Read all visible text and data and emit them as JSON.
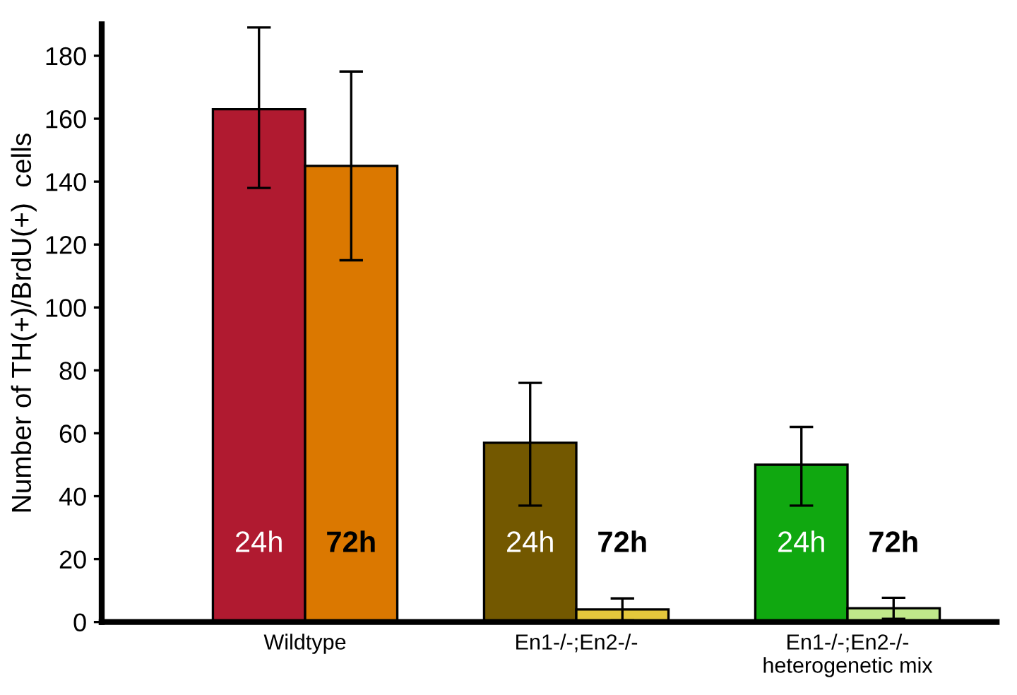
{
  "chart_data": {
    "type": "bar",
    "ylabel": "Number of TH(+)/BrdU(+)  cells",
    "categories": [
      "Wildtype",
      "En1-/-;En2-/-",
      "En1-/-;En2-/-\nheterogenetic mix"
    ],
    "series": [
      {
        "name": "24h",
        "colors": [
          "#b01a30",
          "#735800",
          "#10a810"
        ],
        "values": [
          163,
          57,
          50
        ],
        "errors": [
          [
            138,
            189
          ],
          [
            37,
            76
          ],
          [
            37,
            62
          ]
        ]
      },
      {
        "name": "72h",
        "colors": [
          "#db7800",
          "#e4c83c",
          "#c0e88a"
        ],
        "values": [
          145,
          4,
          4.4
        ],
        "errors": [
          [
            115,
            175
          ],
          [
            0.5,
            7.5
          ],
          [
            1,
            7.7
          ]
        ]
      }
    ],
    "ylim": [
      0,
      190
    ],
    "yticks": [
      0,
      20,
      40,
      60,
      80,
      100,
      120,
      140,
      160,
      180
    ],
    "grid": false,
    "legend": false
  }
}
